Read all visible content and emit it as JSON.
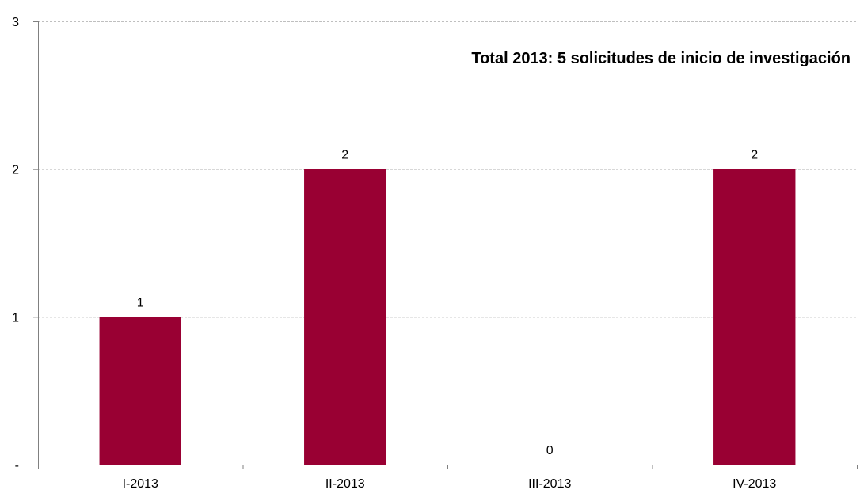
{
  "chart_data": {
    "type": "bar",
    "title": "Total 2013: 5 solicitudes de inicio de investigación",
    "xlabel": "",
    "ylabel": "",
    "categories": [
      "I-2013",
      "II-2013",
      "III-2013",
      "IV-2013"
    ],
    "values": [
      1,
      2,
      0,
      2
    ],
    "data_labels": [
      "1",
      "2",
      "0",
      "2"
    ],
    "ylim": [
      0,
      3
    ],
    "y_ticks": [
      0,
      1,
      2,
      3
    ],
    "y_tick_labels": [
      "-",
      "1",
      "2",
      "3"
    ],
    "grid": true,
    "bar_color": "#990033",
    "grid_color": "#bfbfbf",
    "axis_color": "#808080"
  }
}
